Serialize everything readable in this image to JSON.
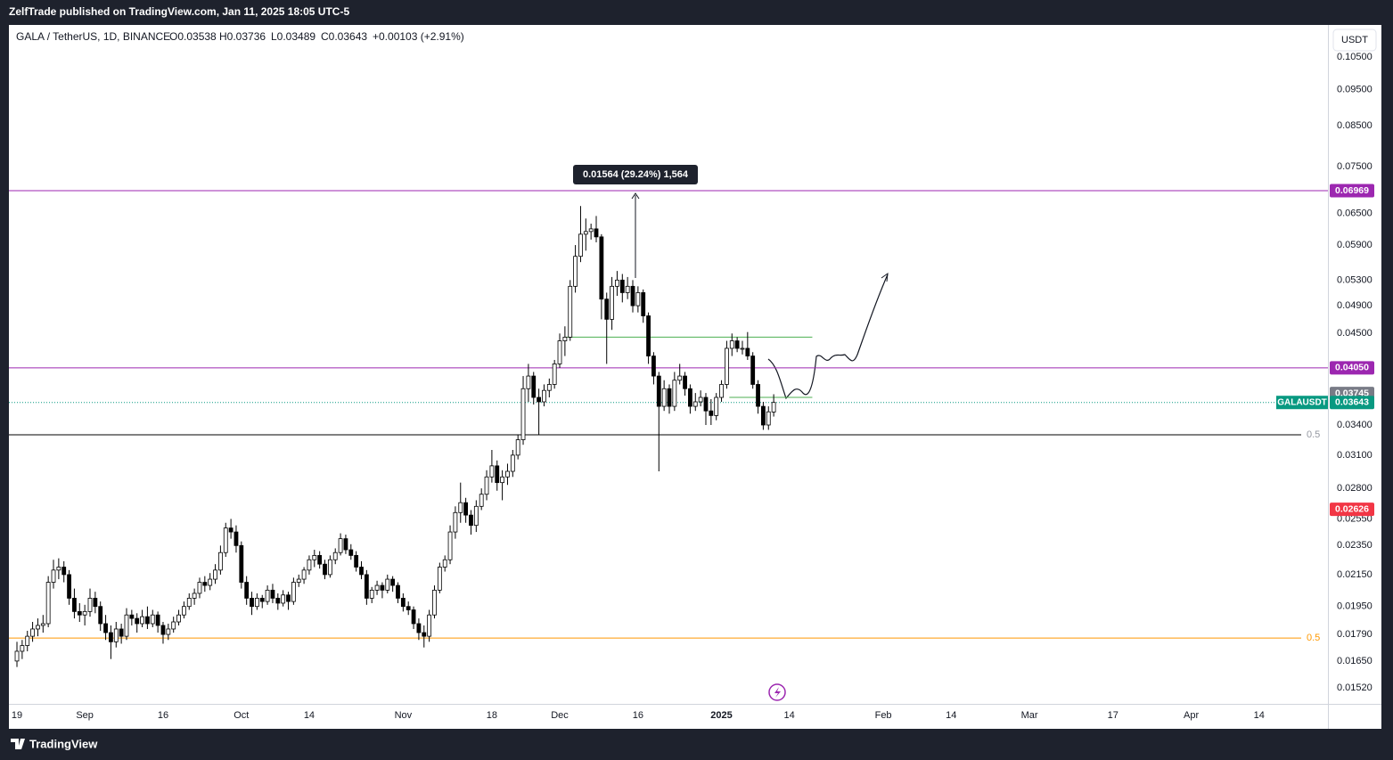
{
  "header": "ZelfTrade published on TradingView.com, Jan 11, 2025 18:05 UTC-5",
  "footer": "TradingView",
  "chart_data": {
    "type": "candlestick",
    "legend": {
      "symbol": "GALA / TetherUS, 1D, BINANCE",
      "open": "O0.03538",
      "high": "H0.03736",
      "low": "L0.03489",
      "close": "C0.03643",
      "change": "+0.00103 (+2.91%)"
    },
    "currency": "USDT",
    "symbol_tag": "GALAUSDT",
    "log_scale": true,
    "up_color": "#ffffff",
    "down_color": "#000000",
    "ylim": [
      0.01447,
      0.1158
    ],
    "yticks": [
      {
        "value": 0.105,
        "label": "0.10500"
      },
      {
        "value": 0.095,
        "label": "0.09500"
      },
      {
        "value": 0.085,
        "label": "0.08500"
      },
      {
        "value": 0.075,
        "label": "0.07500"
      },
      {
        "value": 0.065,
        "label": "0.06500"
      },
      {
        "value": 0.059,
        "label": "0.05900"
      },
      {
        "value": 0.053,
        "label": "0.05300"
      },
      {
        "value": 0.049,
        "label": "0.04900"
      },
      {
        "value": 0.045,
        "label": "0.04500"
      },
      {
        "value": 0.034,
        "label": "0.03400"
      },
      {
        "value": 0.031,
        "label": "0.03100"
      },
      {
        "value": 0.028,
        "label": "0.02800"
      },
      {
        "value": 0.0255,
        "label": "0.02550"
      },
      {
        "value": 0.0235,
        "label": "0.02350"
      },
      {
        "value": 0.0215,
        "label": "0.02150"
      },
      {
        "value": 0.0195,
        "label": "0.01950"
      },
      {
        "value": 0.0179,
        "label": "0.01790"
      },
      {
        "value": 0.0165,
        "label": "0.01650"
      },
      {
        "value": 0.0152,
        "label": "0.01520"
      }
    ],
    "xlim": [
      -1.54,
      251.2
    ],
    "xticks": [
      {
        "value": 0,
        "label": "19"
      },
      {
        "value": 13,
        "label": "Sep"
      },
      {
        "value": 28,
        "label": "16"
      },
      {
        "value": 43,
        "label": "Oct"
      },
      {
        "value": 56,
        "label": "14"
      },
      {
        "value": 74,
        "label": "Nov"
      },
      {
        "value": 91,
        "label": "18"
      },
      {
        "value": 104,
        "label": "Dec"
      },
      {
        "value": 119,
        "label": "16"
      },
      {
        "value": 135,
        "label": "2025"
      },
      {
        "value": 148,
        "label": "14"
      },
      {
        "value": 166,
        "label": "Feb"
      },
      {
        "value": 179,
        "label": "14"
      },
      {
        "value": 194,
        "label": "Mar"
      },
      {
        "value": 210,
        "label": "17"
      },
      {
        "value": 225,
        "label": "Apr"
      },
      {
        "value": 238,
        "label": "14"
      }
    ],
    "levels": [
      {
        "value": 0.06969,
        "label": "0.06969",
        "color": "#9c27b0",
        "line_style": "solid"
      },
      {
        "value": 0.0405,
        "label": "0.04050",
        "color": "#9c27b0",
        "line_style": "solid"
      },
      {
        "value": 0.03745,
        "label": "0.03745",
        "color": "#787b86",
        "line_style": "none"
      },
      {
        "value": 0.03643,
        "label": "0.03643",
        "color": "#089981",
        "line_style": "dotted"
      },
      {
        "value": 0.02626,
        "label": "0.02626",
        "color": "#f23645",
        "line_style": "none"
      }
    ],
    "fib_levels": [
      {
        "value": 0.033,
        "label": "0.5",
        "color": "#000000",
        "text_color": "#9598a1"
      },
      {
        "value": 0.0177,
        "label": "0.5",
        "color": "#ff9800",
        "text_color": "#ff9800"
      }
    ],
    "segments": [
      {
        "value": 0.0445,
        "from": 105,
        "to": 152.4,
        "color": "#4caf50"
      },
      {
        "value": 0.037,
        "from": 136.5,
        "to": 152.4,
        "color": "#4caf50"
      }
    ],
    "measure": "0.01564 (29.24%) 1,564",
    "ohlc": [
      [
        0.0165,
        0.0175,
        0.0162,
        0.017
      ],
      [
        0.017,
        0.0176,
        0.0166,
        0.0173
      ],
      [
        0.0173,
        0.0181,
        0.017,
        0.0178
      ],
      [
        0.0178,
        0.0186,
        0.0175,
        0.0182
      ],
      [
        0.0182,
        0.0188,
        0.0178,
        0.0184
      ],
      [
        0.0184,
        0.019,
        0.018,
        0.0185
      ],
      [
        0.0185,
        0.0214,
        0.0183,
        0.021
      ],
      [
        0.021,
        0.0225,
        0.0206,
        0.0218
      ],
      [
        0.0218,
        0.0226,
        0.0212,
        0.022
      ],
      [
        0.022,
        0.0224,
        0.021,
        0.0215
      ],
      [
        0.0215,
        0.0218,
        0.0196,
        0.02
      ],
      [
        0.02,
        0.0206,
        0.0188,
        0.0192
      ],
      [
        0.0192,
        0.0197,
        0.0186,
        0.019
      ],
      [
        0.019,
        0.0196,
        0.0184,
        0.0192
      ],
      [
        0.0192,
        0.0206,
        0.0189,
        0.02
      ],
      [
        0.02,
        0.0204,
        0.0191,
        0.0195
      ],
      [
        0.0195,
        0.0198,
        0.0181,
        0.0185
      ],
      [
        0.0185,
        0.019,
        0.0176,
        0.018
      ],
      [
        0.018,
        0.0184,
        0.0166,
        0.0175
      ],
      [
        0.0175,
        0.0186,
        0.0172,
        0.0182
      ],
      [
        0.0182,
        0.0185,
        0.0174,
        0.0178
      ],
      [
        0.0178,
        0.0194,
        0.0176,
        0.019
      ],
      [
        0.019,
        0.0193,
        0.0184,
        0.0188
      ],
      [
        0.0188,
        0.0191,
        0.018,
        0.0185
      ],
      [
        0.0185,
        0.0193,
        0.0183,
        0.0189
      ],
      [
        0.0189,
        0.0195,
        0.0182,
        0.0185
      ],
      [
        0.0185,
        0.0193,
        0.0183,
        0.019
      ],
      [
        0.019,
        0.0192,
        0.018,
        0.0184
      ],
      [
        0.0184,
        0.0186,
        0.0174,
        0.0179
      ],
      [
        0.0179,
        0.0185,
        0.0176,
        0.0182
      ],
      [
        0.0182,
        0.0189,
        0.018,
        0.0186
      ],
      [
        0.0186,
        0.0193,
        0.0184,
        0.019
      ],
      [
        0.019,
        0.0198,
        0.0188,
        0.0195
      ],
      [
        0.0195,
        0.0203,
        0.0193,
        0.02
      ],
      [
        0.02,
        0.0206,
        0.0196,
        0.0203
      ],
      [
        0.0203,
        0.0213,
        0.02,
        0.021
      ],
      [
        0.021,
        0.0214,
        0.0204,
        0.0208
      ],
      [
        0.0208,
        0.0216,
        0.0205,
        0.0212
      ],
      [
        0.0212,
        0.0222,
        0.0209,
        0.0218
      ],
      [
        0.0218,
        0.0235,
        0.0215,
        0.023
      ],
      [
        0.023,
        0.0252,
        0.0227,
        0.0248
      ],
      [
        0.0248,
        0.0255,
        0.024,
        0.0245
      ],
      [
        0.0245,
        0.025,
        0.023,
        0.0235
      ],
      [
        0.0235,
        0.0238,
        0.0206,
        0.021
      ],
      [
        0.021,
        0.0214,
        0.0196,
        0.02
      ],
      [
        0.02,
        0.0204,
        0.019,
        0.0195
      ],
      [
        0.0195,
        0.0203,
        0.0193,
        0.02
      ],
      [
        0.02,
        0.0202,
        0.0194,
        0.0198
      ],
      [
        0.0198,
        0.0208,
        0.0196,
        0.0205
      ],
      [
        0.0205,
        0.0209,
        0.0197,
        0.02
      ],
      [
        0.02,
        0.0203,
        0.0193,
        0.0197
      ],
      [
        0.0197,
        0.0205,
        0.0195,
        0.0202
      ],
      [
        0.0202,
        0.0204,
        0.0193,
        0.0198
      ],
      [
        0.0198,
        0.0213,
        0.0196,
        0.021
      ],
      [
        0.021,
        0.0215,
        0.0207,
        0.0212
      ],
      [
        0.0212,
        0.022,
        0.0209,
        0.0218
      ],
      [
        0.0218,
        0.0228,
        0.0215,
        0.0225
      ],
      [
        0.0225,
        0.0232,
        0.022,
        0.0228
      ],
      [
        0.0228,
        0.0231,
        0.0219,
        0.0222
      ],
      [
        0.0222,
        0.0225,
        0.0212,
        0.0215
      ],
      [
        0.0215,
        0.0228,
        0.0213,
        0.0225
      ],
      [
        0.0225,
        0.0233,
        0.0222,
        0.023
      ],
      [
        0.023,
        0.0244,
        0.0228,
        0.024
      ],
      [
        0.024,
        0.0243,
        0.0229,
        0.0232
      ],
      [
        0.0232,
        0.0236,
        0.0225,
        0.0228
      ],
      [
        0.0228,
        0.0231,
        0.0217,
        0.022
      ],
      [
        0.022,
        0.0224,
        0.0212,
        0.0215
      ],
      [
        0.0215,
        0.0218,
        0.0196,
        0.02
      ],
      [
        0.02,
        0.0207,
        0.0197,
        0.0205
      ],
      [
        0.0205,
        0.0211,
        0.0202,
        0.0208
      ],
      [
        0.0208,
        0.021,
        0.02,
        0.0205
      ],
      [
        0.0205,
        0.0215,
        0.0203,
        0.0212
      ],
      [
        0.0212,
        0.0214,
        0.0204,
        0.0208
      ],
      [
        0.0208,
        0.021,
        0.0197,
        0.02
      ],
      [
        0.02,
        0.0203,
        0.0192,
        0.0195
      ],
      [
        0.0195,
        0.0198,
        0.019,
        0.0193
      ],
      [
        0.0193,
        0.0195,
        0.0182,
        0.0185
      ],
      [
        0.0185,
        0.0188,
        0.0176,
        0.018
      ],
      [
        0.018,
        0.0184,
        0.0172,
        0.0178
      ],
      [
        0.0178,
        0.0193,
        0.0175,
        0.019
      ],
      [
        0.019,
        0.0208,
        0.0188,
        0.0205
      ],
      [
        0.0205,
        0.0223,
        0.0203,
        0.022
      ],
      [
        0.022,
        0.0228,
        0.0217,
        0.0225
      ],
      [
        0.0225,
        0.025,
        0.0222,
        0.0245
      ],
      [
        0.0245,
        0.0265,
        0.024,
        0.026
      ],
      [
        0.026,
        0.0285,
        0.0252,
        0.0268
      ],
      [
        0.0268,
        0.0272,
        0.0252,
        0.0258
      ],
      [
        0.0258,
        0.0262,
        0.0243,
        0.025
      ],
      [
        0.025,
        0.027,
        0.0245,
        0.0265
      ],
      [
        0.0265,
        0.028,
        0.0262,
        0.0275
      ],
      [
        0.0275,
        0.0296,
        0.027,
        0.029
      ],
      [
        0.029,
        0.0315,
        0.0285,
        0.03
      ],
      [
        0.03,
        0.0305,
        0.0278,
        0.0285
      ],
      [
        0.0285,
        0.0296,
        0.027,
        0.029
      ],
      [
        0.029,
        0.0302,
        0.0283,
        0.0295
      ],
      [
        0.0295,
        0.0315,
        0.029,
        0.031
      ],
      [
        0.031,
        0.033,
        0.0306,
        0.0325
      ],
      [
        0.0325,
        0.0395,
        0.032,
        0.038
      ],
      [
        0.038,
        0.041,
        0.0365,
        0.0395
      ],
      [
        0.0395,
        0.04,
        0.0362,
        0.037
      ],
      [
        0.037,
        0.038,
        0.033,
        0.0365
      ],
      [
        0.0365,
        0.0385,
        0.036,
        0.0378
      ],
      [
        0.0378,
        0.0392,
        0.037,
        0.0385
      ],
      [
        0.0385,
        0.0415,
        0.038,
        0.041
      ],
      [
        0.041,
        0.045,
        0.0405,
        0.044
      ],
      [
        0.044,
        0.046,
        0.042,
        0.0445
      ],
      [
        0.0445,
        0.053,
        0.044,
        0.052
      ],
      [
        0.052,
        0.059,
        0.051,
        0.057
      ],
      [
        0.057,
        0.0665,
        0.056,
        0.061
      ],
      [
        0.061,
        0.064,
        0.058,
        0.0615
      ],
      [
        0.0615,
        0.063,
        0.06,
        0.062
      ],
      [
        0.062,
        0.0645,
        0.0595,
        0.0605
      ],
      [
        0.0605,
        0.061,
        0.047,
        0.05
      ],
      [
        0.05,
        0.051,
        0.041,
        0.047
      ],
      [
        0.047,
        0.0535,
        0.0455,
        0.052
      ],
      [
        0.052,
        0.0545,
        0.0505,
        0.053
      ],
      [
        0.053,
        0.054,
        0.0495,
        0.051
      ],
      [
        0.051,
        0.0535,
        0.05,
        0.052
      ],
      [
        0.052,
        0.053,
        0.048,
        0.049
      ],
      [
        0.049,
        0.052,
        0.048,
        0.051
      ],
      [
        0.051,
        0.0515,
        0.0465,
        0.0475
      ],
      [
        0.0475,
        0.048,
        0.041,
        0.042
      ],
      [
        0.042,
        0.0425,
        0.0385,
        0.0395
      ],
      [
        0.0395,
        0.04,
        0.0295,
        0.036
      ],
      [
        0.036,
        0.039,
        0.0355,
        0.038
      ],
      [
        0.038,
        0.0385,
        0.0352,
        0.036
      ],
      [
        0.036,
        0.04,
        0.0355,
        0.039
      ],
      [
        0.039,
        0.041,
        0.0385,
        0.0395
      ],
      [
        0.0395,
        0.04,
        0.0372,
        0.038
      ],
      [
        0.038,
        0.0385,
        0.0352,
        0.036
      ],
      [
        0.036,
        0.0375,
        0.0355,
        0.0365
      ],
      [
        0.0365,
        0.0378,
        0.036,
        0.037
      ],
      [
        0.037,
        0.0375,
        0.034,
        0.0355
      ],
      [
        0.0355,
        0.0368,
        0.034,
        0.035
      ],
      [
        0.035,
        0.0375,
        0.0345,
        0.037
      ],
      [
        0.037,
        0.039,
        0.0365,
        0.0385
      ],
      [
        0.0385,
        0.044,
        0.038,
        0.043
      ],
      [
        0.043,
        0.045,
        0.042,
        0.044
      ],
      [
        0.044,
        0.0445,
        0.0425,
        0.043
      ],
      [
        0.043,
        0.044,
        0.0422,
        0.043
      ],
      [
        0.043,
        0.0452,
        0.0415,
        0.042
      ],
      [
        0.042,
        0.0425,
        0.038,
        0.0385
      ],
      [
        0.0385,
        0.039,
        0.0352,
        0.036
      ],
      [
        0.036,
        0.0365,
        0.0335,
        0.034
      ],
      [
        0.034,
        0.036,
        0.0335,
        0.0354
      ],
      [
        0.03538,
        0.03736,
        0.03489,
        0.03643
      ]
    ]
  }
}
